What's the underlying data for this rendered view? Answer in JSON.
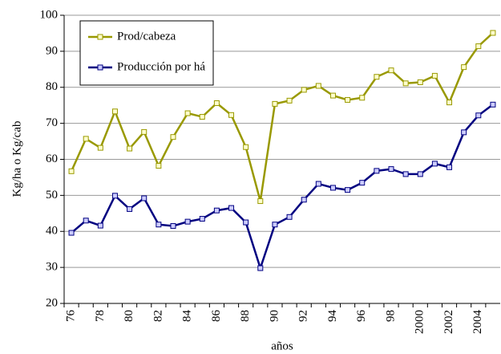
{
  "chart_data": {
    "type": "line",
    "x_label": "años",
    "y_label": "Kg/ha o Kg/cab",
    "categories": [
      "76",
      null,
      "78",
      null,
      "80",
      null,
      "82",
      null,
      "84",
      null,
      "86",
      null,
      "88",
      null,
      "90",
      null,
      "92",
      null,
      "94",
      null,
      "96",
      null,
      "98",
      null,
      "2000",
      null,
      "2002",
      null,
      "2004",
      null
    ],
    "series": [
      {
        "name": "Prod/cabeza",
        "color": "#999900",
        "marker_fill": "#ffffcc",
        "values": [
          56.7,
          65.7,
          63.2,
          73.3,
          63,
          67.6,
          58.2,
          66.2,
          72.8,
          71.8,
          75.6,
          72.3,
          63.4,
          48.4,
          75.4,
          76.3,
          79.3,
          80.4,
          77.7,
          76.5,
          77.1,
          82.9,
          84.7,
          81.1,
          81.4,
          83.2,
          75.8,
          85.6,
          91.4,
          95.1
        ]
      },
      {
        "name": "Producción por há",
        "color": "#000080",
        "marker_fill": "#ccccff",
        "values": [
          39.6,
          43,
          41.6,
          49.9,
          46.2,
          49.2,
          41.9,
          41.5,
          42.7,
          43.5,
          45.8,
          46.5,
          42.5,
          29.8,
          41.9,
          44,
          48.8,
          53.2,
          52.1,
          51.5,
          53.5,
          56.8,
          57.3,
          55.9,
          55.9,
          58.8,
          57.8,
          67.5,
          72.2,
          75.2
        ]
      }
    ],
    "ylim": [
      20,
      100
    ],
    "yticks": [
      20,
      30,
      40,
      50,
      60,
      70,
      80,
      90,
      100
    ],
    "grid": true,
    "legend": "upper left"
  }
}
